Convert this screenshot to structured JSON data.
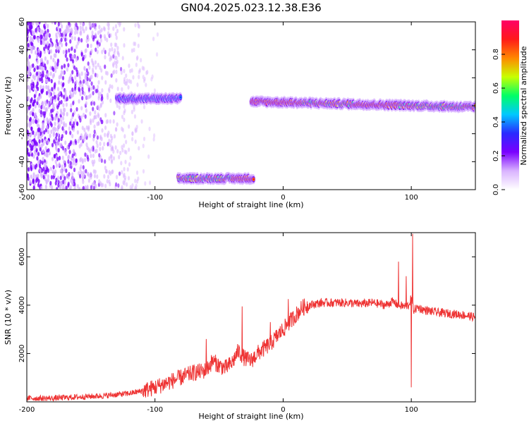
{
  "title": "GN04.2025.023.12.38.E36",
  "chart_data": [
    {
      "type": "heatmap",
      "xlabel": "Height of straight line (km)",
      "ylabel": "Frequency (Hz)",
      "xlim": [
        -200,
        150
      ],
      "ylim": [
        -60,
        60
      ],
      "xticks": [
        -200,
        -100,
        0,
        100
      ],
      "yticks": [
        -60,
        -40,
        -20,
        0,
        20,
        40,
        60
      ],
      "colorbar": {
        "label": "Normalized spectral amplitude",
        "range": [
          0,
          1
        ],
        "ticks": [
          "0.0",
          "0.2",
          "0.4",
          "0.6",
          "0.8"
        ],
        "colors": [
          "#ffffff",
          "#d9b3ff",
          "#7a00ff",
          "#2a2aff",
          "#00c8ff",
          "#00ff66",
          "#c8ff00",
          "#ff8800",
          "#ff1a1a",
          "#ff0066"
        ]
      },
      "features": [
        {
          "name": "noise",
          "x_range": [
            -200,
            -95
          ],
          "freq_range": [
            -60,
            60
          ]
        },
        {
          "name": "band-1",
          "x_range": [
            -130,
            -80
          ],
          "freq_center": 5,
          "peak_amplitude": 0.35
        },
        {
          "name": "band-2",
          "x_range": [
            -82,
            -23
          ],
          "freq_center": -52,
          "peak_amplitude": 0.95
        },
        {
          "name": "band-3",
          "x_range": [
            -25,
            150
          ],
          "freq_start": 3,
          "freq_end": -1,
          "peak_amplitude": 1.0
        }
      ]
    },
    {
      "type": "line",
      "xlabel": "Height of straight line (km)",
      "ylabel": "SNR (10 * v/v)",
      "xlim": [
        -200,
        150
      ],
      "ylim": [
        0,
        7000
      ],
      "xticks": [
        -200,
        -100,
        0,
        100
      ],
      "yticks": [
        2000,
        4000,
        6000
      ],
      "color": "#ee3333",
      "series": [
        {
          "x": [
            -200,
            -180,
            -160,
            -140,
            -120,
            -110,
            -100,
            -90,
            -80,
            -70,
            -60,
            -55,
            -50,
            -45,
            -40,
            -35,
            -30,
            -25,
            -20,
            -15,
            -10,
            -5,
            0,
            5,
            10,
            15,
            20,
            30,
            40,
            50,
            60,
            70,
            80,
            85,
            90,
            95,
            98,
            100,
            102,
            105,
            110,
            120,
            130,
            140,
            150
          ],
          "y": [
            150,
            150,
            200,
            250,
            350,
            450,
            600,
            800,
            1000,
            1200,
            1300,
            1700,
            1500,
            1400,
            1600,
            2100,
            1800,
            1700,
            2000,
            2200,
            2400,
            2700,
            3000,
            3300,
            3600,
            3900,
            4000,
            4100,
            4100,
            4100,
            4050,
            4100,
            4000,
            4150,
            4000,
            3950,
            4000,
            4300,
            3800,
            3900,
            3800,
            3700,
            3650,
            3600,
            3500
          ],
          "spikes": [
            {
              "x": -60,
              "y": 2600
            },
            {
              "x": -32,
              "y": 3950
            },
            {
              "x": -10,
              "y": 3300
            },
            {
              "x": 4,
              "y": 4250
            },
            {
              "x": 90,
              "y": 5800
            },
            {
              "x": 96,
              "y": 5200
            },
            {
              "x": 101,
              "y": 6950
            },
            {
              "x": 100,
              "y": 600
            }
          ]
        }
      ]
    }
  ]
}
